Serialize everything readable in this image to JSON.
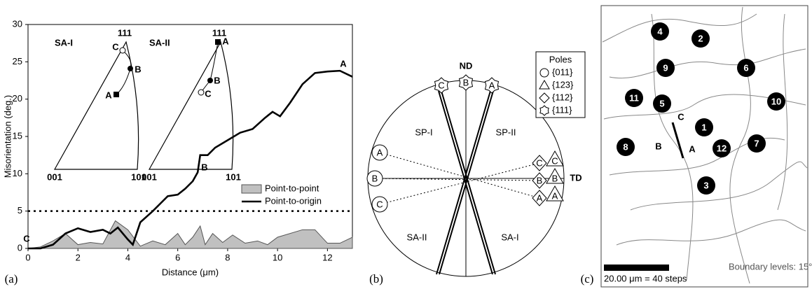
{
  "chart_data": {
    "type": "line",
    "panel_label": "(a)",
    "x_label": "Distance (μm)",
    "y_label": "Misorientation (deg.)",
    "xlim": [
      0,
      13
    ],
    "xticks": [
      0,
      2,
      4,
      6,
      8,
      10,
      12
    ],
    "ylim": [
      0,
      30
    ],
    "yticks": [
      0,
      5,
      10,
      15,
      20,
      25,
      30
    ],
    "reference_line": 5,
    "point_labels": [
      "C",
      "B",
      "A"
    ],
    "series": [
      {
        "name": "Point-to-point",
        "color": "#c0c0c0",
        "fill": true,
        "x": [
          0,
          0.5,
          1,
          1.5,
          2,
          2.5,
          3,
          3.5,
          4,
          4.5,
          5,
          5.5,
          6,
          6.3,
          6.6,
          6.9,
          7.1,
          7.4,
          7.8,
          8.2,
          8.7,
          9.2,
          9.6,
          10,
          11,
          11.5,
          12,
          12.5,
          13
        ],
        "values": [
          0,
          0.2,
          1,
          2,
          0.5,
          0.8,
          0.6,
          3.7,
          2.5,
          0.3,
          1,
          0.5,
          2,
          0.5,
          1.5,
          3,
          0.5,
          2,
          0.8,
          1.8,
          0.7,
          1,
          0.5,
          1.5,
          2.5,
          2.5,
          0.7,
          0.7,
          1.5
        ]
      },
      {
        "name": "Point-to-origin",
        "color": "#000000",
        "fill": false,
        "x": [
          0,
          0.5,
          1,
          1.5,
          2,
          2.5,
          3,
          3.3,
          3.6,
          4,
          4.2,
          4.5,
          5,
          5.3,
          5.6,
          6,
          6.3,
          6.6,
          6.8,
          6.9,
          7.2,
          7.5,
          8,
          8.5,
          9,
          9.5,
          9.8,
          10.1,
          10.5,
          11,
          11.5,
          12,
          12.5,
          13
        ],
        "values": [
          0,
          0,
          0.5,
          2,
          2.7,
          2.2,
          2.5,
          2,
          2.8,
          1.2,
          0.5,
          3.5,
          5,
          6,
          7,
          7.2,
          8,
          9,
          10.2,
          12.5,
          12.5,
          13.5,
          14.5,
          15.5,
          16,
          17.5,
          18.3,
          17.7,
          19.5,
          22,
          23.5,
          23.7,
          23.8,
          23
        ]
      }
    ],
    "insets": [
      {
        "title": "SA-I",
        "corners": [
          "111",
          "001",
          "101"
        ],
        "points": [
          "C",
          "B",
          "A"
        ]
      },
      {
        "title": "SA-II",
        "corners": [
          "111",
          "001",
          "101"
        ],
        "points": [
          "A",
          "B",
          "C"
        ]
      }
    ]
  },
  "pole_figure": {
    "panel_label": "(b)",
    "axes": [
      "ND",
      "TD"
    ],
    "traces": [
      "SP-I",
      "SP-II",
      "SA-II",
      "SA-I"
    ],
    "top_labels": [
      "C",
      "B",
      "A"
    ],
    "left_labels": [
      "A",
      "B",
      "C"
    ],
    "right_diamond_labels": [
      "C",
      "B",
      "A"
    ],
    "right_triangle_labels": [
      "C",
      "B",
      "A"
    ],
    "legend_title": "Poles",
    "legend": [
      "{011}",
      "{123}",
      "{112}",
      "{111}"
    ]
  },
  "grain_map": {
    "panel_label": "(c)",
    "grains": [
      "4",
      "2",
      "9",
      "6",
      "11",
      "5",
      "10",
      "1",
      "8",
      "12",
      "7",
      "3"
    ],
    "line_labels": [
      "C",
      "B",
      "A"
    ],
    "scale_bar": "20.00 μm = 40 steps",
    "boundary_note": "Boundary levels: 15°"
  }
}
